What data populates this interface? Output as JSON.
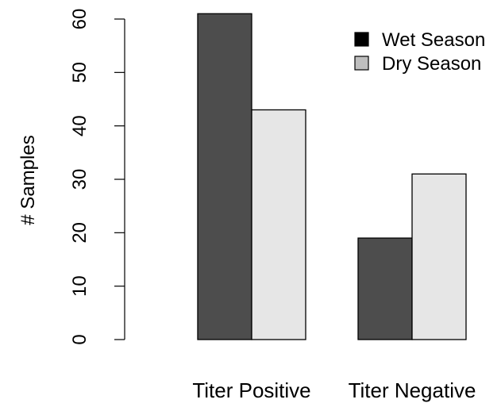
{
  "chart_data": {
    "type": "bar",
    "title": "",
    "xlabel": "",
    "ylabel": "# Samples",
    "categories": [
      "Titer Positive",
      "Titer Negative"
    ],
    "series": [
      {
        "name": "Wet Season",
        "values": [
          61,
          19
        ],
        "color": "#4d4d4d"
      },
      {
        "name": "Dry Season",
        "values": [
          43,
          31
        ],
        "color": "#e6e6e6"
      }
    ],
    "ylim": [
      0,
      60
    ],
    "yticks": [
      "0",
      "10",
      "20",
      "30",
      "40",
      "50",
      "60"
    ],
    "grid": false,
    "legend_position": "top-right",
    "legend_swatch_colors": [
      "#000000",
      "#bebebe"
    ],
    "bar_border_color": "#000000"
  }
}
